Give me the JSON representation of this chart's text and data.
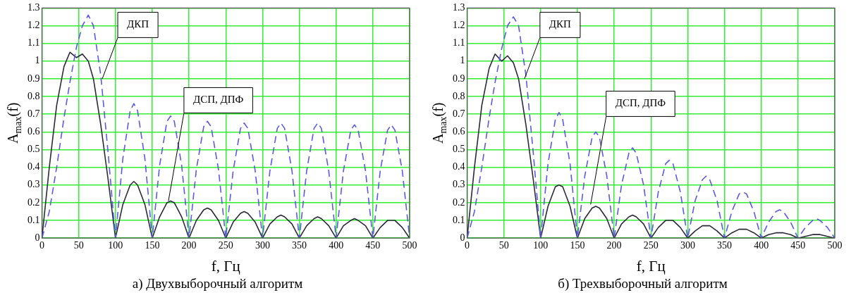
{
  "chart_data": [
    {
      "type": "line",
      "title": "а) Двухвыборочный алгоритм",
      "xlabel": "f, Гц",
      "ylabel": "A$_{max}$(f)",
      "x": [
        0,
        10,
        20,
        30,
        38,
        47,
        55,
        63,
        70,
        80,
        90,
        100,
        110,
        120,
        125,
        130,
        140,
        150,
        160,
        170,
        175,
        180,
        190,
        200,
        210,
        220,
        225,
        230,
        240,
        250,
        260,
        270,
        275,
        280,
        290,
        300,
        310,
        320,
        325,
        330,
        340,
        350,
        360,
        370,
        375,
        380,
        390,
        400,
        410,
        420,
        425,
        430,
        440,
        450,
        460,
        470,
        475,
        480,
        490,
        500
      ],
      "series": [
        {
          "color": "#5a5ae6",
          "line_style": "dashed",
          "values": [
            0,
            0.15,
            0.4,
            0.68,
            0.88,
            1.08,
            1.2,
            1.26,
            1.2,
            0.92,
            0.48,
            0,
            0.45,
            0.72,
            0.76,
            0.72,
            0.45,
            0,
            0.41,
            0.66,
            0.69,
            0.66,
            0.41,
            0,
            0.39,
            0.63,
            0.66,
            0.63,
            0.39,
            0,
            0.38,
            0.62,
            0.65,
            0.62,
            0.38,
            0,
            0.38,
            0.62,
            0.65,
            0.62,
            0.38,
            0,
            0.38,
            0.62,
            0.65,
            0.62,
            0.38,
            0,
            0.38,
            0.61,
            0.64,
            0.61,
            0.38,
            0,
            0.38,
            0.61,
            0.64,
            0.61,
            0.38,
            0
          ]
        },
        {
          "color": "#2a2a3a",
          "line_style": "solid",
          "values": [
            0,
            0.4,
            0.75,
            0.97,
            1.05,
            1.02,
            1.04,
            1.0,
            0.9,
            0.64,
            0.33,
            0,
            0.19,
            0.3,
            0.32,
            0.3,
            0.19,
            0,
            0.12,
            0.2,
            0.21,
            0.2,
            0.12,
            0,
            0.1,
            0.16,
            0.17,
            0.16,
            0.1,
            0,
            0.09,
            0.14,
            0.15,
            0.14,
            0.09,
            0,
            0.08,
            0.12,
            0.13,
            0.12,
            0.08,
            0,
            0.07,
            0.11,
            0.12,
            0.11,
            0.07,
            0,
            0.07,
            0.1,
            0.11,
            0.1,
            0.07,
            0,
            0.06,
            0.1,
            0.1,
            0.1,
            0.06,
            0
          ]
        }
      ],
      "xlim": [
        0,
        500
      ],
      "xticks": [
        0,
        50,
        100,
        150,
        200,
        250,
        300,
        350,
        400,
        450,
        500
      ],
      "ylim": [
        0,
        1.3
      ],
      "yticks": [
        0,
        0.1,
        0.2,
        0.3,
        0.4,
        0.5,
        0.6,
        0.7,
        0.8,
        0.9,
        1,
        1.1,
        1.2,
        1.3
      ],
      "grid": true,
      "legend": false,
      "marker": "none",
      "annotations": [
        {
          "text": "ДКП",
          "x": 82,
          "y": 0.9
        },
        {
          "text": "ДСП, ДПФ",
          "x": 172,
          "y": 0.21
        }
      ]
    },
    {
      "type": "line",
      "title": "б) Трехвыборочный алгоритм",
      "xlabel": "f, Гц",
      "ylabel": "A$_{max}$(f)",
      "x": [
        0,
        10,
        20,
        30,
        38,
        47,
        55,
        63,
        70,
        80,
        90,
        100,
        110,
        120,
        125,
        130,
        140,
        150,
        160,
        170,
        175,
        180,
        190,
        200,
        210,
        220,
        225,
        230,
        240,
        250,
        260,
        270,
        275,
        280,
        290,
        300,
        310,
        320,
        325,
        330,
        340,
        350,
        360,
        370,
        375,
        380,
        390,
        400,
        410,
        420,
        425,
        430,
        440,
        450,
        460,
        470,
        475,
        480,
        490,
        500
      ],
      "series": [
        {
          "color": "#5a5ae6",
          "line_style": "dashed",
          "values": [
            0,
            0.15,
            0.4,
            0.68,
            0.88,
            1.07,
            1.2,
            1.25,
            1.2,
            0.92,
            0.48,
            0,
            0.42,
            0.67,
            0.71,
            0.67,
            0.42,
            0,
            0.35,
            0.57,
            0.6,
            0.57,
            0.35,
            0,
            0.3,
            0.48,
            0.51,
            0.48,
            0.3,
            0,
            0.26,
            0.42,
            0.44,
            0.42,
            0.26,
            0,
            0.21,
            0.33,
            0.35,
            0.33,
            0.21,
            0,
            0.15,
            0.25,
            0.26,
            0.25,
            0.15,
            0,
            0.09,
            0.15,
            0.16,
            0.15,
            0.09,
            0,
            0.06,
            0.1,
            0.11,
            0.1,
            0.06,
            0
          ]
        },
        {
          "color": "#2a2a3a",
          "line_style": "solid",
          "values": [
            0,
            0.4,
            0.75,
            0.96,
            1.04,
            1.0,
            1.03,
            0.99,
            0.9,
            0.64,
            0.33,
            0,
            0.18,
            0.29,
            0.3,
            0.29,
            0.18,
            0,
            0.11,
            0.17,
            0.18,
            0.17,
            0.11,
            0,
            0.08,
            0.12,
            0.13,
            0.12,
            0.08,
            0,
            0.06,
            0.1,
            0.1,
            0.1,
            0.06,
            0,
            0.04,
            0.07,
            0.07,
            0.07,
            0.04,
            0,
            0.03,
            0.05,
            0.05,
            0.05,
            0.03,
            0,
            0.02,
            0.03,
            0.03,
            0.03,
            0.02,
            0,
            0.01,
            0.02,
            0.02,
            0.02,
            0.01,
            0
          ]
        }
      ],
      "xlim": [
        0,
        500
      ],
      "xticks": [
        0,
        50,
        100,
        150,
        200,
        250,
        300,
        350,
        400,
        450,
        500
      ],
      "ylim": [
        0,
        1.3
      ],
      "yticks": [
        0,
        0.1,
        0.2,
        0.3,
        0.4,
        0.5,
        0.6,
        0.7,
        0.8,
        0.9,
        1,
        1.1,
        1.2,
        1.3
      ],
      "grid": true,
      "legend": false,
      "marker": "none",
      "annotations": [
        {
          "text": "ДКП",
          "x": 78,
          "y": 0.9
        },
        {
          "text": "ДСП, ДПФ",
          "x": 168,
          "y": 0.19
        }
      ]
    }
  ]
}
